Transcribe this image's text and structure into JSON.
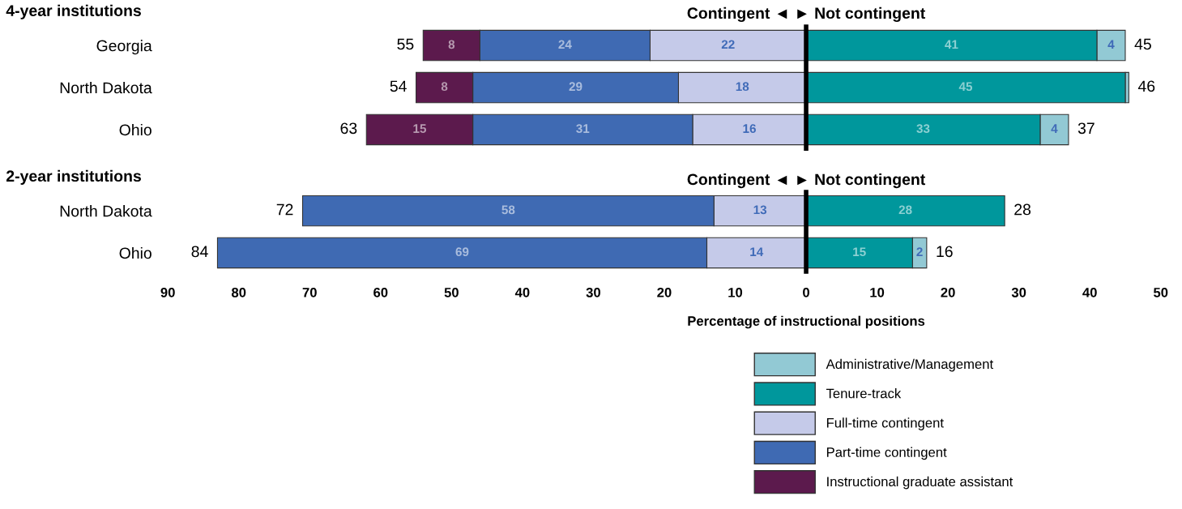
{
  "chart_data": [
    {
      "type": "bar",
      "orientation": "horizontal",
      "title": "4-year institutions",
      "categories": [
        "Georgia",
        "North Dakota",
        "Ohio"
      ],
      "series": [
        {
          "color": "#92c9d4",
          "values": [
            4,
            0.5,
            4
          ],
          "base": [
            41,
            45,
            33
          ],
          "value_labels": [
            "4",
            null,
            "4"
          ]
        },
        {
          "color": "#00979c",
          "values": [
            41,
            45,
            33
          ],
          "base": [
            0,
            0,
            0
          ],
          "value_labels": [
            "41",
            "45",
            "33"
          ]
        },
        {
          "color": "#c5cae9",
          "values": [
            22,
            18,
            16
          ],
          "base": [
            -22,
            -18,
            -16
          ],
          "value_labels": [
            "22",
            "18",
            "16"
          ]
        },
        {
          "color": "#3f6ab3",
          "values": [
            24,
            29,
            31
          ],
          "base": [
            -46,
            -47,
            -47
          ],
          "value_labels": [
            "24",
            "29",
            "31"
          ]
        },
        {
          "color": "#5c1a4d",
          "values": [
            8,
            8,
            15
          ],
          "base": [
            -54,
            -55,
            -62
          ],
          "value_labels": [
            "8",
            "8",
            "15"
          ]
        }
      ],
      "annotations": [
        "Contingent ◄ ► Not contingent",
        "55",
        "45",
        "54",
        "46",
        "63",
        "37"
      ],
      "xlim": [
        -90,
        50
      ],
      "ref_lines": [
        {
          "axis": "x",
          "value": 0,
          "color": "#000000"
        }
      ],
      "tick_labels": "y"
    },
    {
      "type": "bar",
      "orientation": "horizontal",
      "title": "2-year institutions",
      "xlabel": "Percentage of instructional positions",
      "categories": [
        "North Dakota",
        "Ohio"
      ],
      "series": [
        {
          "name": "Administrative/Management",
          "color": "#92c9d4",
          "values": [
            null,
            2
          ],
          "base": [
            null,
            15
          ],
          "value_labels": [
            null,
            "2"
          ]
        },
        {
          "name": "Tenure-track",
          "color": "#00979c",
          "values": [
            28,
            15
          ],
          "base": [
            0,
            0
          ],
          "value_labels": [
            "28",
            "15"
          ]
        },
        {
          "name": "Full-time contingent",
          "color": "#c5cae9",
          "values": [
            13,
            14
          ],
          "base": [
            -13,
            -14
          ],
          "value_labels": [
            "13",
            "14"
          ]
        },
        {
          "name": "Part-time contingent",
          "color": "#3f6ab3",
          "values": [
            58,
            69
          ],
          "base": [
            -71,
            -83
          ],
          "value_labels": [
            "58",
            "69"
          ]
        },
        {
          "name": "Instructional graduate assistant",
          "color": "#5c1a4d",
          "values": [
            null,
            null
          ],
          "base": [
            null,
            null
          ]
        }
      ],
      "annotations": [
        "Contingent ◄ ► Not contingent",
        "72",
        "28",
        "84",
        "16"
      ],
      "xlim": [
        -90,
        50
      ],
      "xticks": [
        {
          "value": -90,
          "label": "90"
        },
        {
          "value": -80,
          "label": "80"
        },
        {
          "value": -70,
          "label": "70"
        },
        {
          "value": -60,
          "label": "60"
        },
        {
          "value": -50,
          "label": "50"
        },
        {
          "value": -40,
          "label": "40"
        },
        {
          "value": -30,
          "label": "30"
        },
        {
          "value": -20,
          "label": "20"
        },
        {
          "value": -10,
          "label": "10"
        },
        0,
        10,
        20,
        30,
        40,
        50
      ],
      "ref_lines": [
        {
          "axis": "x",
          "value": 0,
          "color": "#000000"
        }
      ],
      "legend": "bottom right"
    }
  ]
}
